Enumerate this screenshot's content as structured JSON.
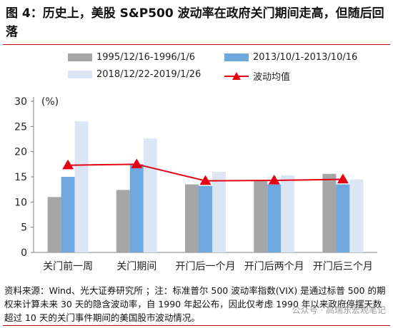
{
  "figure": {
    "title": "图 4：历史上，美股 S&P500 波动率在政府关门期间走高，但随后回落",
    "source": "资料来源：Wind、光大证券研究所 ；注：标准普尔 500 波动率指数(VIX) 是通过标普 500 的期权来计算未来 30 天的隐含波动率，自 1990 年起公布，因此仅考虑 1990 年以来政府停摆天数超过 10 天的关门事件期间的美国股市波动情况。",
    "watermark": "公众号 · 高瑞东宏观笔记"
  },
  "colors": {
    "s1": "#a6a6a6",
    "s2": "#6fa8dc",
    "s3": "#dbe5f4",
    "avg": "#e60012"
  },
  "chart_data": {
    "type": "bar",
    "title": "",
    "unit_label": "(%)",
    "categories": [
      "关门前一周",
      "关门期间",
      "开门后一个月",
      "开门后两个月",
      "开门后三个月"
    ],
    "series": [
      {
        "name": "1995/12/16-1996/1/6",
        "type": "bar",
        "values": [
          11.0,
          12.4,
          13.5,
          14.2,
          15.6
        ]
      },
      {
        "name": "2013/10/1-2013/10/16",
        "type": "bar",
        "values": [
          15.0,
          17.5,
          13.2,
          13.5,
          13.5
        ]
      },
      {
        "name": "2018/12/22-2019/1/26",
        "type": "bar",
        "values": [
          26.0,
          22.6,
          16.0,
          15.3,
          14.5
        ]
      },
      {
        "name": "波动均值",
        "type": "line",
        "values": [
          17.3,
          17.5,
          14.2,
          14.3,
          14.5
        ]
      }
    ],
    "ylim": [
      0,
      30
    ],
    "yticks": [
      0,
      5,
      10,
      15,
      20,
      25,
      30
    ],
    "grid": false,
    "legend": "top"
  }
}
